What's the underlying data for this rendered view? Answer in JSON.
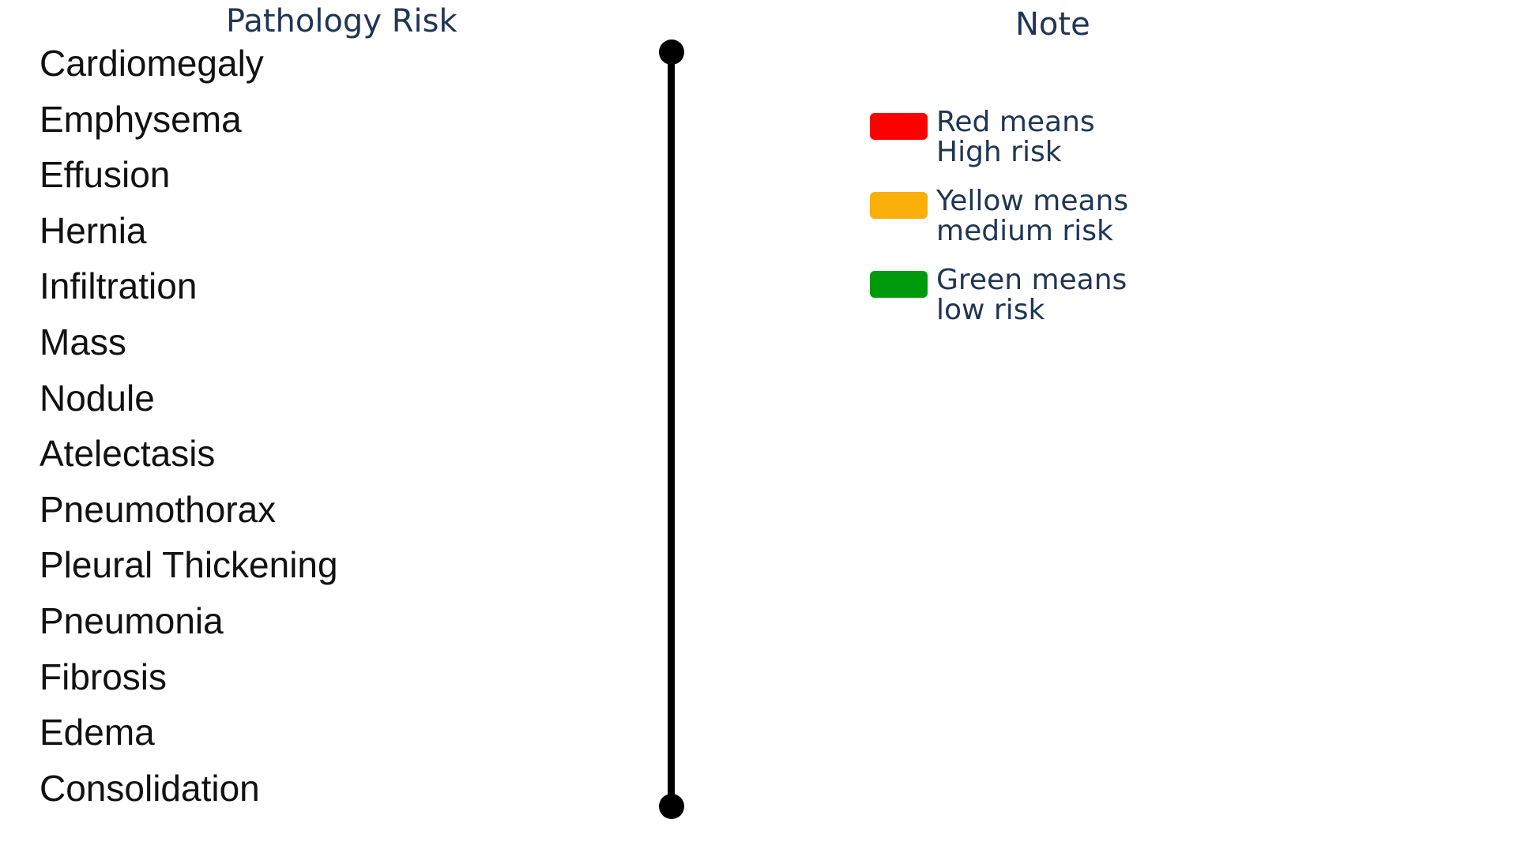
{
  "pathology_risk": {
    "title": "Pathology Risk",
    "items": [
      "Cardiomegaly",
      "Emphysema",
      "Effusion",
      "Hernia",
      "Infiltration",
      "Mass",
      "Nodule",
      "Atelectasis",
      "Pneumothorax",
      "Pleural Thickening",
      "Pneumonia",
      "Fibrosis",
      "Edema",
      "Consolidation"
    ]
  },
  "note": {
    "title": "Note",
    "legend": [
      {
        "color": "#ff0000",
        "line1": "Red means",
        "line2": "High risk"
      },
      {
        "color": "#fbaf0b",
        "line1": "Yellow means",
        "line2": "medium risk"
      },
      {
        "color": "#009a0d",
        "line1": "Green means",
        "line2": "low risk"
      }
    ]
  }
}
